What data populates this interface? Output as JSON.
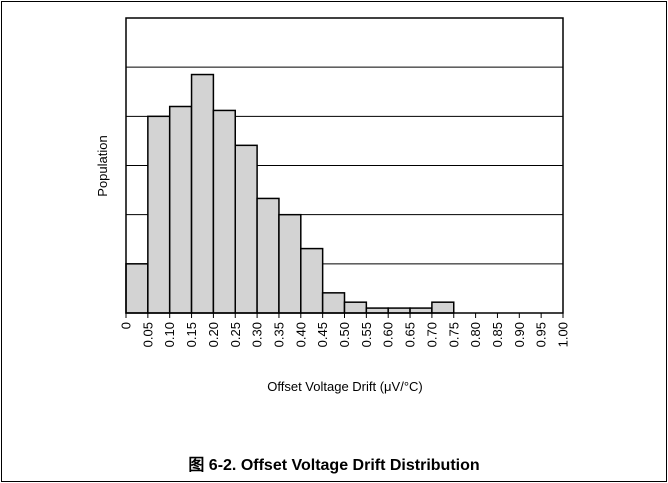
{
  "chart_data": {
    "type": "histogram",
    "title": "图 6-2. Offset Voltage Drift Distribution",
    "xlabel": "Offset Voltage Drift (μV/°C)",
    "ylabel": "Population",
    "bins": [
      0,
      0.05,
      0.1,
      0.15,
      0.2,
      0.25,
      0.3,
      0.35,
      0.4,
      0.45,
      0.5,
      0.55,
      0.6,
      0.65,
      0.7,
      0.75
    ],
    "values": [
      1.0,
      4.0,
      4.2,
      4.85,
      4.12,
      3.41,
      2.33,
      2.0,
      1.31,
      0.41,
      0.22,
      0.1,
      0.1,
      0.1,
      0.22
    ],
    "color": "#d3d3d3",
    "xlim": [
      0,
      1
    ],
    "xticks": [
      0,
      0.05,
      {
        "value": 0.1,
        "label": "0.10"
      },
      0.15,
      {
        "value": 0.2,
        "label": "0.20"
      },
      0.25,
      {
        "value": 0.3,
        "label": "0.30"
      },
      0.35,
      {
        "value": 0.4,
        "label": "0.40"
      },
      0.45,
      {
        "value": 0.5,
        "label": "0.50"
      },
      0.55,
      {
        "value": 0.6,
        "label": "0.60"
      },
      0.65,
      {
        "value": 0.7,
        "label": "0.70"
      },
      0.75,
      {
        "value": 0.8,
        "label": "0.80"
      },
      0.85,
      {
        "value": 0.9,
        "label": "0.90"
      },
      0.95,
      {
        "value": 1,
        "label": "1.00"
      }
    ],
    "ylim": [
      0,
      6
    ],
    "yticks": [
      1,
      2,
      3,
      4,
      5
    ],
    "grid": true
  }
}
